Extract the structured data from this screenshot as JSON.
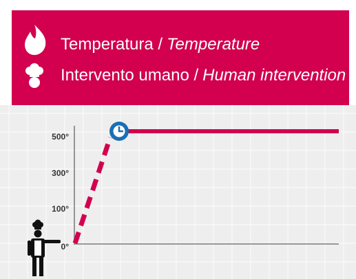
{
  "legend": [
    {
      "label": "Temperatura /",
      "label_en": "Temperature"
    },
    {
      "label": "Intervento umano /",
      "label_en": "Human intervention"
    }
  ],
  "axis": {
    "ticks": [
      "500°",
      "300°",
      "100°",
      "0°"
    ]
  }
}
